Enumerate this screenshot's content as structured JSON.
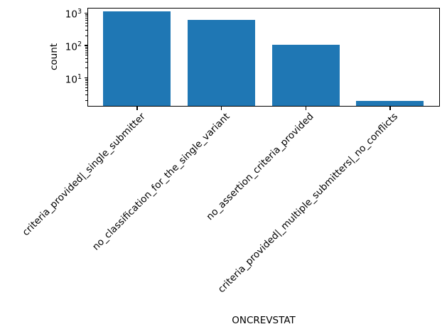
{
  "chart_data": {
    "type": "bar",
    "title": "",
    "xlabel": "ONCREVSTAT",
    "ylabel": "count",
    "categories": [
      "criteria_provided|_single_submitter",
      "no_classification_for_the_single_variant",
      "no_assertion_criteria_provided",
      "criteria_provided|_multiple_submitters|_no_conflicts"
    ],
    "values": [
      1150,
      640,
      105,
      2
    ],
    "bar_color": "#1f77b4",
    "yscale": "log",
    "ylim": [
      1.29,
      1460
    ],
    "y_major_ticks": [
      10,
      100,
      1000
    ],
    "y_tick_labels": [
      "10^1",
      "10^2",
      "10^3"
    ],
    "bar_width_fraction": 0.8,
    "grid": false,
    "legend": null,
    "x_tick_rotation_deg": 45
  }
}
